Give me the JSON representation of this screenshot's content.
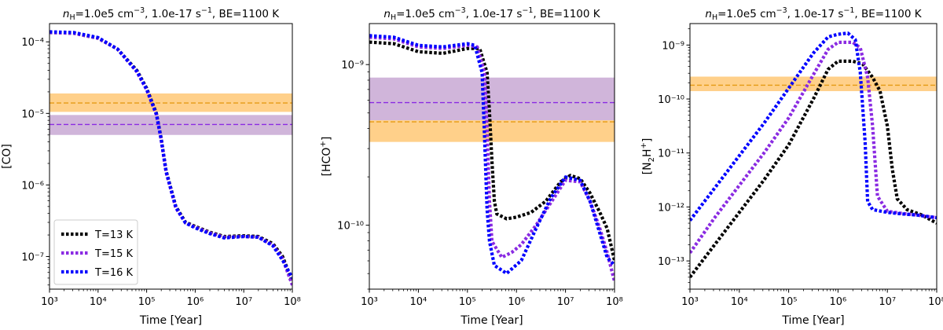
{
  "figure": {
    "time_label": "Time [Year]"
  },
  "chart_data": [
    {
      "type": "line",
      "title_parts": [
        "n",
        "H",
        "=1.0e5 cm",
        "−3",
        ", 1.0e-17 s",
        "−1",
        ", BE=1100 K"
      ],
      "ylabel_parts": [
        "[CO]"
      ],
      "xlabel": "Time [Year]",
      "xscale": "log",
      "yscale": "log",
      "xlim": [
        1000,
        100000000
      ],
      "ylim": [
        3.5e-08,
        0.00018
      ],
      "x_ticks": [
        3,
        4,
        5,
        6,
        7,
        8
      ],
      "y_ticks": [
        -7,
        -6,
        -5,
        -4
      ],
      "legend": {
        "position": "lower-left",
        "entries": [
          {
            "label": "T=13 K",
            "color": "#000000"
          },
          {
            "label": "T=15 K",
            "color": "#8a2be2"
          },
          {
            "label": "T=16 K",
            "color": "#0000ff"
          }
        ]
      },
      "bands": [
        {
          "color": "#ffc875",
          "low": 1.05e-05,
          "high": 1.9e-05,
          "line": 1.4e-05,
          "line_color": "#e59a14"
        },
        {
          "color": "#c8a8d4",
          "low": 5e-06,
          "high": 9.5e-06,
          "line": 7e-06,
          "line_color": "#8a2be2"
        }
      ],
      "series": [
        {
          "name": "T=13 K",
          "color": "#000000",
          "x": [
            3,
            3.5,
            4,
            4.4,
            4.8,
            5.0,
            5.2,
            5.3,
            5.4,
            5.6,
            5.8,
            6.0,
            6.3,
            6.6,
            7.0,
            7.3,
            7.6,
            7.8,
            8.0
          ],
          "y": [
            -3.87,
            -3.88,
            -3.95,
            -4.1,
            -4.4,
            -4.65,
            -5.0,
            -5.35,
            -5.8,
            -6.3,
            -6.52,
            -6.58,
            -6.66,
            -6.72,
            -6.71,
            -6.72,
            -6.82,
            -7.0,
            -7.35
          ]
        },
        {
          "name": "T=15 K",
          "color": "#8a2be2",
          "x": [
            3,
            3.5,
            4,
            4.4,
            4.8,
            5.0,
            5.2,
            5.3,
            5.4,
            5.6,
            5.8,
            6.0,
            6.3,
            6.6,
            7.0,
            7.3,
            7.6,
            7.8,
            8.0
          ],
          "y": [
            -3.87,
            -3.88,
            -3.95,
            -4.1,
            -4.42,
            -4.67,
            -5.02,
            -5.37,
            -5.82,
            -6.32,
            -6.53,
            -6.59,
            -6.67,
            -6.73,
            -6.72,
            -6.73,
            -6.84,
            -7.03,
            -7.4
          ]
        },
        {
          "name": "T=16 K",
          "color": "#0000ff",
          "x": [
            3,
            3.5,
            4,
            4.4,
            4.8,
            5.0,
            5.2,
            5.3,
            5.4,
            5.6,
            5.8,
            6.0,
            6.3,
            6.6,
            7.0,
            7.3,
            7.6,
            7.8,
            8.0
          ],
          "y": [
            -3.86,
            -3.87,
            -3.94,
            -4.1,
            -4.41,
            -4.66,
            -5.01,
            -5.36,
            -5.81,
            -6.31,
            -6.53,
            -6.6,
            -6.68,
            -6.74,
            -6.72,
            -6.73,
            -6.85,
            -7.05,
            -7.3
          ]
        }
      ]
    },
    {
      "type": "line",
      "title_parts": [
        "n",
        "H",
        "=1.0e5 cm",
        "−3",
        ", 1.0e-17 s",
        "−1",
        ", BE=1100 K"
      ],
      "ylabel_parts": [
        "[HCO",
        "+",
        "]"
      ],
      "xlabel": "Time [Year]",
      "xscale": "log",
      "yscale": "log",
      "xlim": [
        1000,
        100000000
      ],
      "ylim": [
        4e-11,
        1.8e-09
      ],
      "x_ticks": [
        3,
        4,
        5,
        6,
        7,
        8
      ],
      "y_ticks": [
        -10,
        -9
      ],
      "bands": [
        {
          "color": "#c8a8d4",
          "low": 4.5e-10,
          "high": 8.3e-10,
          "line": 5.8e-10,
          "line_color": "#8a2be2"
        },
        {
          "color": "#ffc875",
          "low": 3.3e-10,
          "high": 4.5e-10,
          "line": 4.4e-10,
          "line_color": "#e59a14"
        }
      ],
      "series": [
        {
          "name": "T=13 K",
          "color": "#000000",
          "x": [
            3,
            3.5,
            4,
            4.5,
            5,
            5.25,
            5.4,
            5.45,
            5.5,
            5.55,
            5.6,
            5.8,
            6.0,
            6.3,
            6.6,
            6.9,
            7.1,
            7.3,
            7.5,
            7.7,
            7.85,
            8.0
          ],
          "y": [
            -8.86,
            -8.87,
            -8.92,
            -8.93,
            -8.9,
            -8.9,
            -9.05,
            -9.3,
            -9.6,
            -9.85,
            -9.93,
            -9.96,
            -9.95,
            -9.92,
            -9.85,
            -9.73,
            -9.69,
            -9.71,
            -9.8,
            -9.92,
            -10.02,
            -10.22
          ]
        },
        {
          "name": "T=15 K",
          "color": "#8a2be2",
          "x": [
            3,
            3.5,
            4,
            4.5,
            5,
            5.2,
            5.35,
            5.4,
            5.45,
            5.5,
            5.7,
            5.9,
            6.1,
            6.4,
            6.7,
            7.0,
            7.3,
            7.5,
            7.7,
            7.85,
            8.0
          ],
          "y": [
            -8.83,
            -8.84,
            -8.89,
            -8.9,
            -8.88,
            -8.89,
            -9.05,
            -9.4,
            -9.85,
            -10.1,
            -10.2,
            -10.17,
            -10.12,
            -10.0,
            -9.86,
            -9.72,
            -9.73,
            -9.85,
            -10.02,
            -10.17,
            -10.35
          ]
        },
        {
          "name": "T=16 K",
          "color": "#0000ff",
          "x": [
            3,
            3.5,
            4,
            4.5,
            5,
            5.15,
            5.3,
            5.35,
            5.4,
            5.45,
            5.55,
            5.8,
            6.1,
            6.4,
            6.7,
            7.0,
            7.3,
            7.5,
            7.7,
            7.85,
            8.0
          ],
          "y": [
            -8.82,
            -8.83,
            -8.88,
            -8.89,
            -8.87,
            -8.88,
            -9.05,
            -9.45,
            -9.9,
            -10.1,
            -10.25,
            -10.3,
            -10.22,
            -10.02,
            -9.83,
            -9.7,
            -9.72,
            -9.85,
            -10.05,
            -10.2,
            -10.25
          ]
        }
      ]
    },
    {
      "type": "line",
      "title_parts": [
        "n",
        "H",
        "=1.0e5 cm",
        "−3",
        ", 1.0e-17 s",
        "−1",
        ", BE=1100 K"
      ],
      "ylabel_parts": [
        "[N",
        "2",
        "H",
        "+",
        "]"
      ],
      "xlabel": "Time [Year]",
      "xscale": "log",
      "yscale": "log",
      "xlim": [
        1000,
        100000000
      ],
      "ylim": [
        3e-14,
        2.5e-09
      ],
      "x_ticks": [
        3,
        4,
        5,
        6,
        7,
        8
      ],
      "y_ticks": [
        -13,
        -12,
        -11,
        -10,
        -9
      ],
      "bands": [
        {
          "color": "#ffc875",
          "low": 1.4e-10,
          "high": 2.6e-10,
          "line": 1.8e-10,
          "line_color": "#e59a14"
        }
      ],
      "series": [
        {
          "name": "T=13 K",
          "color": "#000000",
          "x": [
            3,
            3.5,
            4,
            4.5,
            5,
            5.5,
            5.8,
            6.0,
            6.3,
            6.5,
            6.7,
            6.85,
            7.0,
            7.1,
            7.2,
            7.4,
            7.7,
            8.0
          ],
          "y": [
            -13.3,
            -12.7,
            -12.1,
            -11.5,
            -10.85,
            -10.0,
            -9.45,
            -9.3,
            -9.3,
            -9.35,
            -9.6,
            -9.85,
            -10.5,
            -11.3,
            -11.85,
            -12.05,
            -12.15,
            -12.3
          ]
        },
        {
          "name": "T=15 K",
          "color": "#8a2be2",
          "x": [
            3,
            3.5,
            4,
            4.5,
            5,
            5.5,
            5.8,
            6.0,
            6.3,
            6.45,
            6.6,
            6.7,
            6.8,
            7.0,
            7.3,
            7.6,
            8.0
          ],
          "y": [
            -12.85,
            -12.2,
            -11.6,
            -11.0,
            -10.35,
            -9.55,
            -9.08,
            -8.95,
            -8.95,
            -9.05,
            -9.6,
            -10.5,
            -11.8,
            -12.08,
            -12.12,
            -12.15,
            -12.2
          ]
        },
        {
          "name": "T=16 K",
          "color": "#0000ff",
          "x": [
            3,
            3.5,
            4,
            4.5,
            5,
            5.5,
            5.8,
            6.0,
            6.2,
            6.35,
            6.45,
            6.55,
            6.6,
            6.7,
            7.0,
            7.3,
            7.6,
            8.0
          ],
          "y": [
            -12.25,
            -11.65,
            -11.05,
            -10.45,
            -9.8,
            -9.15,
            -8.85,
            -8.8,
            -8.78,
            -8.9,
            -9.5,
            -10.8,
            -11.9,
            -12.05,
            -12.1,
            -12.13,
            -12.15,
            -12.2
          ]
        }
      ]
    }
  ]
}
